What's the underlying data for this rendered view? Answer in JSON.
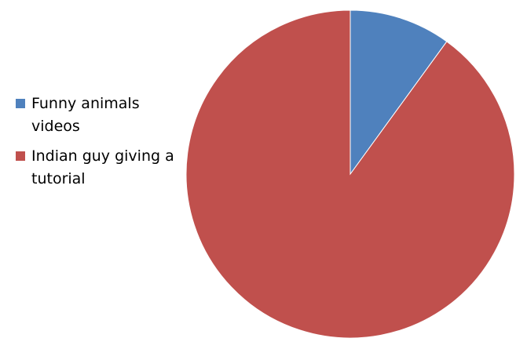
{
  "chart_data": {
    "type": "pie",
    "categories": [
      "Funny animals videos",
      "Indian guy giving a tutorial"
    ],
    "values": [
      10,
      90
    ],
    "colors": [
      "#4f81bd",
      "#c0504d"
    ],
    "start_angle": "12 o'clock, clockwise",
    "legend": "left",
    "title": ""
  }
}
